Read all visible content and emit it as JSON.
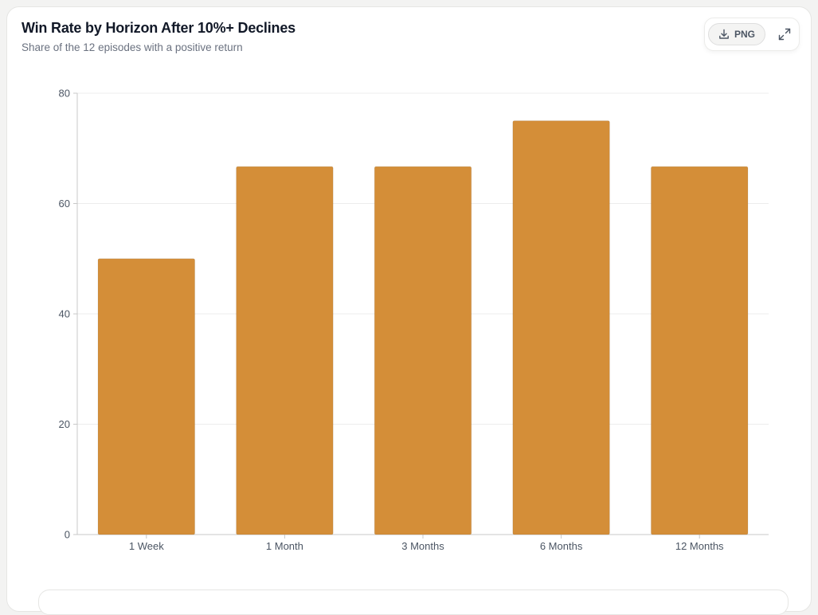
{
  "header": {
    "title": "Win Rate by Horizon After 10%+ Declines",
    "subtitle": "Share of the 12 episodes with a positive return"
  },
  "toolbar": {
    "png_label": "PNG",
    "download_icon": "download-icon",
    "expand_icon": "expand-icon"
  },
  "colors": {
    "bar": "#d48e38",
    "grid": "#ececec",
    "axis": "#c8c8c8"
  },
  "chart_data": {
    "type": "bar",
    "title": "Win Rate by Horizon After 10%+ Declines",
    "subtitle": "Share of the 12 episodes with a positive return",
    "xlabel": "",
    "ylabel": "",
    "categories": [
      "1 Week",
      "1 Month",
      "3 Months",
      "6 Months",
      "12 Months"
    ],
    "values": [
      50,
      66.7,
      66.7,
      75,
      66.7
    ],
    "ylim": [
      0,
      80
    ],
    "yticks": [
      0,
      20,
      40,
      60,
      80
    ],
    "grid": true,
    "legend": "none"
  }
}
